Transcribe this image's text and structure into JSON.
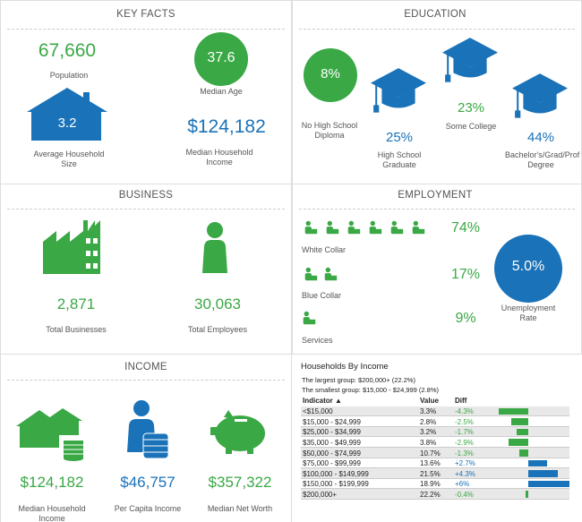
{
  "key_facts": {
    "title": "KEY FACTS",
    "population": {
      "value": "67,660",
      "label": "Population"
    },
    "median_age": {
      "value": "37.6",
      "label": "Median Age"
    },
    "household_size": {
      "value": "3.2",
      "label": "Average Household Size"
    },
    "median_income": {
      "value": "$124,182",
      "label": "Median Household Income"
    }
  },
  "education": {
    "title": "EDUCATION",
    "items": [
      {
        "value": "8%",
        "label": "No High School Diploma"
      },
      {
        "value": "25%",
        "label": "High School Graduate"
      },
      {
        "value": "23%",
        "label": "Some College"
      },
      {
        "value": "44%",
        "label": "Bachelor's/Grad/Prof Degree"
      }
    ]
  },
  "business": {
    "title": "BUSINESS",
    "businesses": {
      "value": "2,871",
      "label": "Total Businesses"
    },
    "employees": {
      "value": "30,063",
      "label": "Total Employees"
    }
  },
  "employment": {
    "title": "EMPLOYMENT",
    "groups": [
      {
        "value": "74%",
        "label": "White Collar"
      },
      {
        "value": "17%",
        "label": "Blue Collar"
      },
      {
        "value": "9%",
        "label": "Services"
      }
    ],
    "unemployment": {
      "value": "5.0%",
      "label": "Unemployment Rate"
    }
  },
  "income": {
    "title": "INCOME",
    "items": [
      {
        "value": "$124,182",
        "label": "Median Household Income"
      },
      {
        "value": "$46,757",
        "label": "Per Capita Income"
      },
      {
        "value": "$357,322",
        "label": "Median Net Worth"
      }
    ]
  },
  "households_by_income": {
    "title": "Households By Income",
    "largest": "The largest group: $200,000+ (22.2%)",
    "smallest": "The smallest group: $15,000 - $24,999 (2.8%)",
    "columns": [
      "Indicator ▲",
      "Value",
      "Diff"
    ],
    "rows": [
      {
        "indicator": "<$15,000",
        "value": "3.3%",
        "diff": {
          "value": -4.3,
          "label": "-4.3%"
        }
      },
      {
        "indicator": "$15,000 - $24,999",
        "value": "2.8%",
        "diff": {
          "value": -2.5,
          "label": "-2.5%"
        }
      },
      {
        "indicator": "$25,000 - $34,999",
        "value": "3.2%",
        "diff": {
          "value": -1.7,
          "label": "-1.7%"
        }
      },
      {
        "indicator": "$35,000 - $49,999",
        "value": "3.8%",
        "diff": {
          "value": -2.9,
          "label": "-2.9%"
        }
      },
      {
        "indicator": "$50,000 - $74,999",
        "value": "10.7%",
        "diff": {
          "value": -1.3,
          "label": "-1.3%"
        }
      },
      {
        "indicator": "$75,000 - $99,999",
        "value": "13.6%",
        "diff": {
          "value": 2.7,
          "label": "+2.7%"
        }
      },
      {
        "indicator": "$100,000 - $149,999",
        "value": "21.5%",
        "diff": {
          "value": 4.3,
          "label": "+4.3%"
        }
      },
      {
        "indicator": "$150,000 - $199,999",
        "value": "18.9%",
        "diff": {
          "value": 6,
          "label": "+6%"
        }
      },
      {
        "indicator": "$200,000+",
        "value": "22.2%",
        "diff": {
          "value": -0.4,
          "label": "-0.4%"
        }
      }
    ]
  }
}
